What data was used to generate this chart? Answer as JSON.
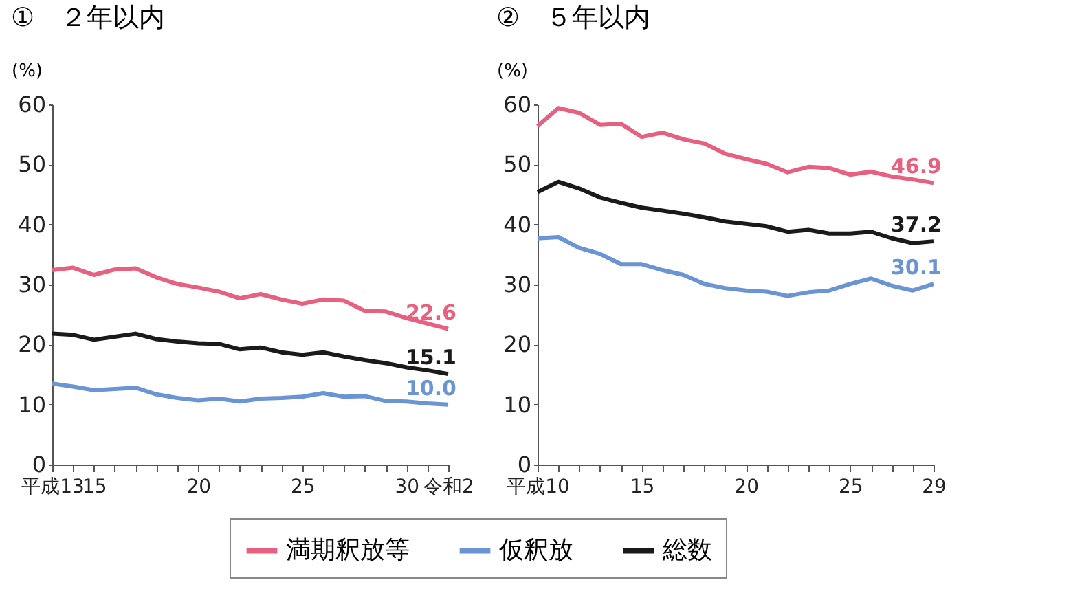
{
  "chart_data": [
    {
      "type": "line",
      "title": "①　２年以内",
      "ylabel": "(%)",
      "categories": [
        "平成13",
        null,
        "15",
        null,
        null,
        null,
        null,
        "20",
        null,
        null,
        null,
        null,
        "25",
        null,
        null,
        null,
        null,
        "30",
        null,
        "令和2"
      ],
      "ylim": [
        0,
        60
      ],
      "yticks": [
        0,
        10,
        20,
        30,
        40,
        50,
        60
      ],
      "grid": false,
      "legend": "bottom",
      "line_style": "solid",
      "series": [
        {
          "name": "満期釈放等",
          "color": "#e8607f",
          "values": [
            32.4,
            32.8,
            31.6,
            32.5,
            32.7,
            31.2,
            30.1,
            29.5,
            28.8,
            27.7,
            28.4,
            27.5,
            26.8,
            27.5,
            27.3,
            25.6,
            25.5,
            24.4,
            23.5,
            22.6
          ],
          "value_labels": [
            null,
            null,
            null,
            null,
            null,
            null,
            null,
            null,
            null,
            null,
            null,
            null,
            null,
            null,
            null,
            null,
            null,
            null,
            null,
            "22.6"
          ]
        },
        {
          "name": "仮釈放",
          "color": "#6a94d4",
          "values": [
            13.5,
            13.0,
            12.4,
            12.6,
            12.8,
            11.7,
            11.1,
            10.7,
            11.0,
            10.5,
            11.0,
            11.1,
            11.3,
            11.9,
            11.3,
            11.4,
            10.6,
            10.5,
            10.2,
            10.0
          ],
          "value_labels": [
            null,
            null,
            null,
            null,
            null,
            null,
            null,
            null,
            null,
            null,
            null,
            null,
            null,
            null,
            null,
            null,
            null,
            null,
            null,
            "10.0"
          ]
        },
        {
          "name": "総数",
          "color": "#1a1a1a",
          "values": [
            21.8,
            21.6,
            20.8,
            21.3,
            21.8,
            20.9,
            20.5,
            20.2,
            20.1,
            19.2,
            19.5,
            18.7,
            18.3,
            18.7,
            18.0,
            17.4,
            16.9,
            16.2,
            15.7,
            15.1
          ],
          "value_labels": [
            null,
            null,
            null,
            null,
            null,
            null,
            null,
            null,
            null,
            null,
            null,
            null,
            null,
            null,
            null,
            null,
            null,
            null,
            null,
            "15.1"
          ]
        }
      ]
    },
    {
      "type": "line",
      "title": "②　５年以内",
      "ylabel": "(%)",
      "categories": [
        "平成10",
        null,
        null,
        null,
        null,
        "15",
        null,
        null,
        null,
        null,
        "20",
        null,
        null,
        null,
        null,
        "25",
        null,
        null,
        null,
        "29"
      ],
      "ylim": [
        0,
        60
      ],
      "yticks": [
        0,
        10,
        20,
        30,
        40,
        50,
        60
      ],
      "grid": false,
      "legend": "bottom",
      "line_style": "solid",
      "series": [
        {
          "name": "満期釈放等",
          "color": "#e8607f",
          "values": [
            56.4,
            59.4,
            58.6,
            56.6,
            56.8,
            54.6,
            55.3,
            54.2,
            53.5,
            51.8,
            50.9,
            50.1,
            48.7,
            49.6,
            49.4,
            48.3,
            48.8,
            48.0,
            47.5,
            46.9
          ],
          "value_labels": [
            null,
            null,
            null,
            null,
            null,
            null,
            null,
            null,
            null,
            null,
            null,
            null,
            null,
            null,
            null,
            null,
            null,
            null,
            null,
            "46.9"
          ]
        },
        {
          "name": "仮釈放",
          "color": "#6a94d4",
          "values": [
            37.7,
            37.9,
            36.1,
            35.1,
            33.4,
            33.4,
            32.4,
            31.6,
            30.1,
            29.4,
            29.0,
            28.8,
            28.1,
            28.7,
            29.0,
            30.1,
            31.0,
            29.8,
            29.0,
            30.1
          ],
          "value_labels": [
            null,
            null,
            null,
            null,
            null,
            null,
            null,
            null,
            null,
            null,
            null,
            null,
            null,
            null,
            null,
            null,
            null,
            null,
            null,
            "30.1"
          ]
        },
        {
          "name": "総数",
          "color": "#1a1a1a",
          "values": [
            45.4,
            47.1,
            46.0,
            44.5,
            43.6,
            42.8,
            42.3,
            41.8,
            41.2,
            40.5,
            40.1,
            39.7,
            38.8,
            39.1,
            38.5,
            38.5,
            38.8,
            37.7,
            36.9,
            37.2
          ],
          "value_labels": [
            null,
            null,
            null,
            null,
            null,
            null,
            null,
            null,
            null,
            null,
            null,
            null,
            null,
            null,
            null,
            null,
            null,
            null,
            null,
            "37.2"
          ]
        }
      ]
    }
  ]
}
